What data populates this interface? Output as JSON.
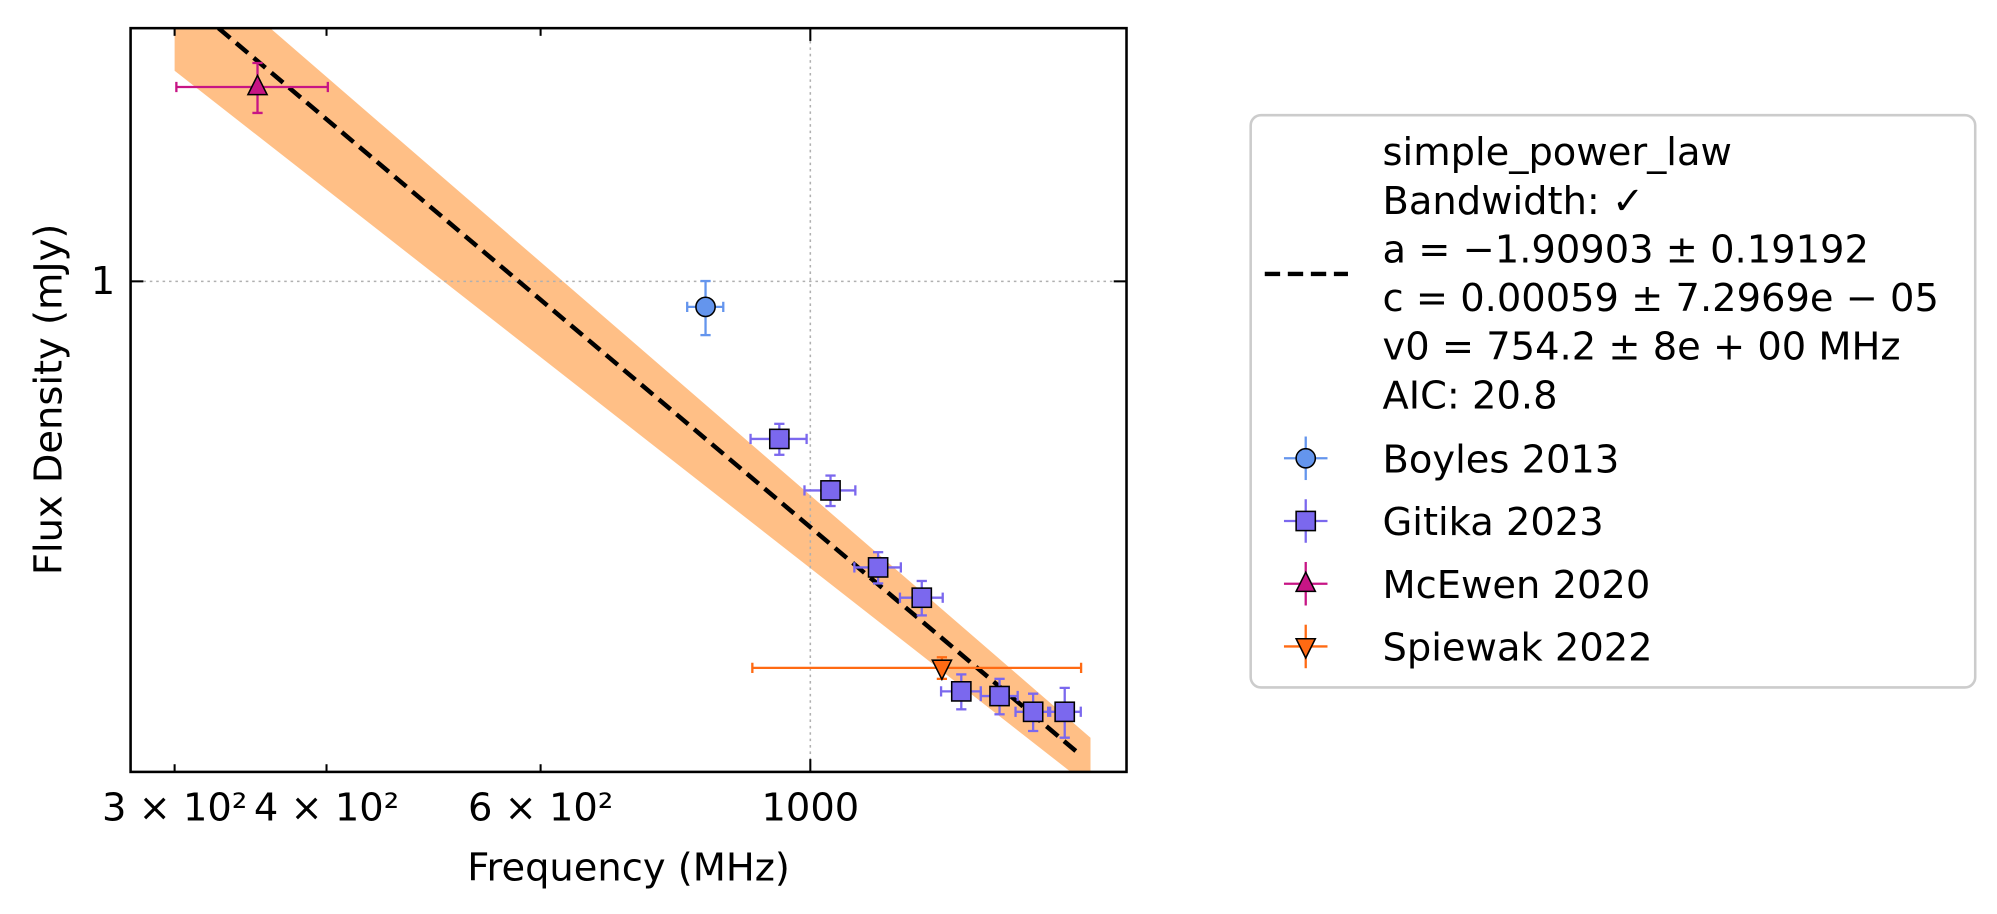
{
  "chart_data": {
    "type": "scatter",
    "xlabel": "Frequency (MHz)",
    "ylabel": "Flux Density (mJy)",
    "xlog": true,
    "ylog": true,
    "xlim": [
      276,
      1820
    ],
    "ylim": [
      0.206,
      2.26
    ],
    "xticks": [
      1000
    ],
    "xticks_minor": [
      {
        "value": 300,
        "label": "3 × 10²"
      },
      {
        "value": 400,
        "label": "4 × 10²"
      },
      {
        "value": 600,
        "label": "6 × 10²"
      }
    ],
    "yticks": [
      1
    ],
    "grid": true,
    "fit": {
      "label_lines": [
        "simple_power_law",
        "Bandwidth: ✓",
        "a = −1.90903 ± 0.19192",
        "c = 0.00059 ± 7.2969e − 05",
        "v0 = 754.2 ± 8e + 00 MHz",
        "AIC: 20.8"
      ],
      "color": "#000000",
      "x": [
        326,
        1671
      ],
      "values": [
        2.26,
        0.217
      ],
      "band": {
        "color": "#ffbf86",
        "x": [
          300,
          1700
        ],
        "lower": [
          1.97,
          0.196
        ],
        "upper": [
          2.95,
          0.23
        ]
      }
    },
    "series": [
      {
        "name": "Boyles 2013",
        "color": "#6495ed",
        "marker": "circle",
        "x": [
          820
        ],
        "values": [
          0.921
        ],
        "xerr": [
          28
        ],
        "yerr": [
          0.08
        ]
      },
      {
        "name": "Gitika 2023",
        "color": "#7b68ee",
        "marker": "square",
        "x": [
          943,
          1039,
          1137,
          1235,
          1331,
          1431,
          1525,
          1619
        ],
        "values": [
          0.602,
          0.51,
          0.398,
          0.361,
          0.267,
          0.263,
          0.25,
          0.25
        ],
        "xerr": [
          50,
          50,
          50,
          50,
          50,
          50,
          50,
          50
        ],
        "yerr": [
          0.03,
          0.025,
          0.02,
          0.02,
          0.015,
          0.015,
          0.015,
          0.02
        ]
      },
      {
        "name": "McEwen 2020",
        "color": "#c71585",
        "marker": "triangle-up",
        "x": [
          351
        ],
        "values": [
          1.87
        ],
        "xerr": [
          50
        ],
        "yerr": [
          0.15
        ]
      },
      {
        "name": "Spiewak 2022",
        "color": "#ff6a13",
        "marker": "triangle-down",
        "x": [
          1283
        ],
        "values": [
          0.288
        ],
        "xerr": [
          387
        ],
        "yerr": [
          0.01
        ]
      }
    ]
  }
}
